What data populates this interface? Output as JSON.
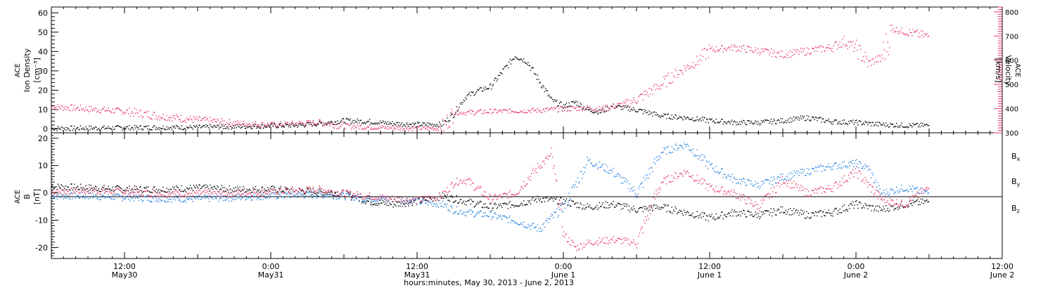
{
  "colors": {
    "black": "#000000",
    "pink": "#e8366b",
    "blue": "#1e7fe0"
  },
  "x_axis": {
    "label": "hours:minutes, May 30, 2013 - June  2, 2013",
    "tick_labels": [
      {
        "hour": 12,
        "time": "12:00",
        "date": "May30"
      },
      {
        "hour": 24,
        "time": "0:00",
        "date": "May31"
      },
      {
        "hour": 36,
        "time": "12:00",
        "date": "May31"
      },
      {
        "hour": 48,
        "time": "0:00",
        "date": "June 1"
      },
      {
        "hour": 60,
        "time": "12:00",
        "date": "June 1"
      },
      {
        "hour": 72,
        "time": "0:00",
        "date": "June 2"
      },
      {
        "hour": 84,
        "time": "12:00",
        "date": "June 2"
      }
    ]
  },
  "chart_data": [
    {
      "type": "scatter",
      "panel": "top",
      "ylabel_left": [
        "ACE",
        "Ion Density",
        "[cm⁻³]"
      ],
      "ylabel_right": [
        "ACE",
        "Velocity",
        "[km/s]"
      ],
      "xlim_hours": [
        6,
        84
      ],
      "ylim_left": [
        -2,
        63
      ],
      "yticks_left": [
        0,
        10,
        20,
        30,
        40,
        50,
        60
      ],
      "ylim_right": [
        300,
        820
      ],
      "yticks_right": [
        300,
        400,
        500,
        600,
        700,
        800
      ],
      "series": [
        {
          "color": "#000000",
          "axis": "left",
          "x_hours": [
            6,
            9,
            12,
            15,
            18,
            21,
            24,
            26,
            28,
            30,
            32,
            33,
            34,
            36,
            38,
            39,
            39.5,
            40,
            41,
            42,
            43,
            44,
            45,
            46,
            47,
            48,
            49,
            50,
            51,
            52,
            54,
            56,
            58,
            60,
            62,
            64,
            66,
            68,
            70,
            72,
            74,
            76,
            78
          ],
          "values": [
            0.5,
            0.6,
            0.8,
            1.0,
            1.0,
            1.4,
            1.8,
            2.0,
            3.0,
            4.5,
            4.0,
            3.5,
            3.0,
            2.5,
            2.5,
            8.0,
            13.0,
            17.0,
            20.0,
            22.0,
            30.0,
            38.0,
            35.0,
            25.0,
            15.0,
            12.0,
            14.0,
            10.0,
            9.0,
            12.0,
            10.0,
            7.0,
            6.0,
            4.5,
            3.5,
            3.5,
            4.5,
            6.0,
            4.0,
            3.5,
            2.5,
            2.0,
            2.0
          ]
        },
        {
          "color": "#e8366b",
          "axis": "right",
          "x_hours": [
            6,
            9,
            12,
            15,
            18,
            21,
            24,
            26,
            28,
            30,
            32,
            34,
            36,
            38,
            39,
            40,
            42,
            44,
            46,
            48,
            50,
            51,
            52,
            53,
            54,
            55,
            56,
            57,
            58,
            59,
            60,
            62,
            64,
            66,
            68,
            70,
            71,
            72,
            73,
            74,
            75,
            76,
            78
          ],
          "values": [
            410,
            400,
            390,
            370,
            355,
            342,
            335,
            340,
            345,
            330,
            325,
            322,
            320,
            320,
            385,
            385,
            390,
            392,
            395,
            400,
            405,
            400,
            410,
            420,
            440,
            470,
            500,
            540,
            570,
            600,
            645,
            655,
            640,
            625,
            640,
            655,
            680,
            650,
            590,
            610,
            730,
            720,
            700
          ]
        }
      ]
    },
    {
      "type": "scatter",
      "panel": "bottom",
      "ylabel_left": [
        "ACE",
        "B",
        "[nT]"
      ],
      "xlim_hours": [
        6,
        84
      ],
      "ylim": [
        -24,
        22
      ],
      "yticks": [
        -20,
        -10,
        0,
        10,
        20
      ],
      "zero_line": true,
      "legend_placement": "right",
      "series": [
        {
          "name": "Bx",
          "color": "#000000",
          "x_hours": [
            6,
            9,
            12,
            15,
            18,
            21,
            24,
            26,
            28,
            30,
            32,
            34,
            36,
            38,
            39,
            40,
            42,
            44,
            46,
            48,
            50,
            52,
            54,
            56,
            58,
            60,
            62,
            64,
            66,
            68,
            70,
            72,
            74,
            76,
            78
          ],
          "values": [
            2.5,
            2.0,
            1.5,
            1.5,
            2.0,
            1.5,
            1.5,
            1.0,
            0.5,
            0.0,
            -3.0,
            -4.0,
            -3.0,
            -1.0,
            -2.0,
            -3.0,
            -5.0,
            -4.0,
            -2.0,
            -3.0,
            -5.0,
            -4.0,
            -6.0,
            -5.0,
            -7.0,
            -9.0,
            -7.0,
            -8.0,
            -6.0,
            -8.0,
            -7.0,
            -4.0,
            -6.0,
            -4.0,
            -3.0
          ]
        },
        {
          "name": "By",
          "color": "#1e7fe0",
          "x_hours": [
            6,
            9,
            12,
            15,
            18,
            21,
            24,
            26,
            28,
            30,
            32,
            34,
            36,
            38,
            39,
            40,
            42,
            44,
            46,
            48,
            50,
            52,
            54,
            56,
            58,
            60,
            62,
            64,
            66,
            68,
            70,
            72,
            73,
            74,
            76,
            78
          ],
          "values": [
            -1.0,
            -1.0,
            -1.5,
            -2.0,
            -2.0,
            -1.5,
            -1.0,
            -0.5,
            -0.5,
            -1.0,
            -2.0,
            -2.0,
            -3.0,
            -4.0,
            -6.0,
            -7.0,
            -8.0,
            -10.0,
            -13.0,
            -5.0,
            12.0,
            8.0,
            0.0,
            15.0,
            18.0,
            10.0,
            5.0,
            3.0,
            6.0,
            8.0,
            10.0,
            11.0,
            9.0,
            0.0,
            2.0,
            0.0
          ]
        },
        {
          "name": "Bz",
          "color": "#e8366b",
          "x_hours": [
            6,
            9,
            12,
            15,
            18,
            21,
            24,
            26,
            28,
            30,
            32,
            34,
            36,
            38,
            39,
            40,
            42,
            44,
            46,
            47,
            48,
            49,
            50,
            52,
            54,
            56,
            58,
            60,
            62,
            64,
            66,
            68,
            70,
            72,
            74,
            76,
            78
          ],
          "values": [
            0.5,
            1.0,
            0.5,
            0.0,
            0.0,
            0.0,
            0.5,
            1.0,
            1.5,
            0.0,
            -1.0,
            -2.0,
            -2.5,
            -1.0,
            4.0,
            5.0,
            -2.0,
            0.0,
            10.0,
            14.0,
            -15.0,
            -20.0,
            -18.0,
            -17.0,
            -18.0,
            4.0,
            8.0,
            2.0,
            0.0,
            -5.0,
            5.0,
            0.0,
            2.0,
            8.0,
            -2.0,
            -4.0,
            2.0
          ]
        }
      ]
    }
  ]
}
